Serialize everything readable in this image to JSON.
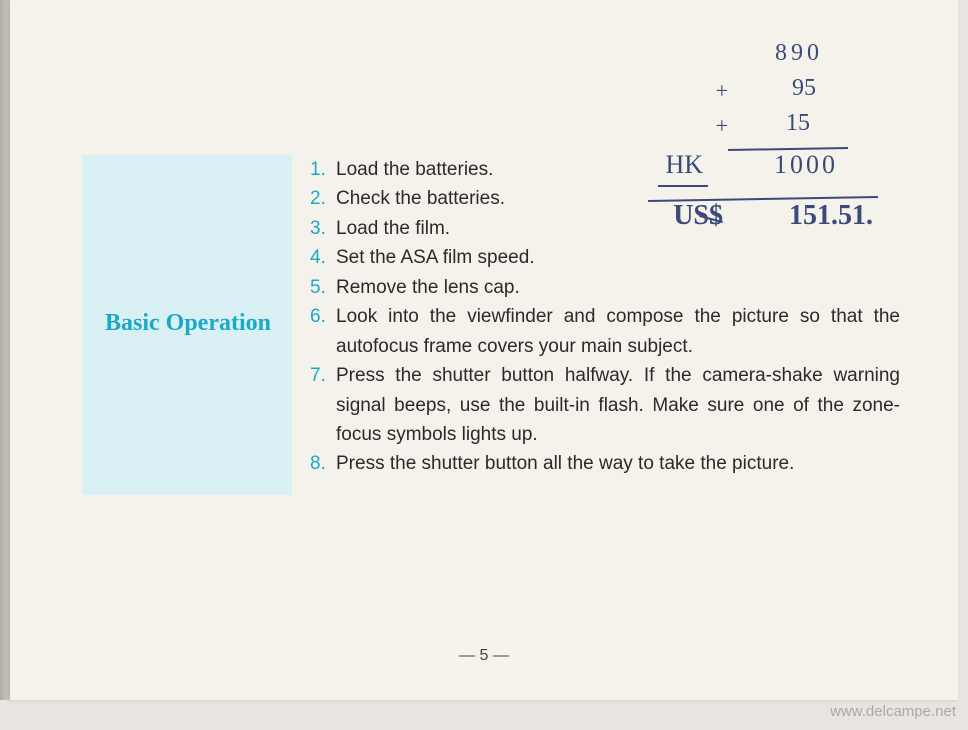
{
  "page": {
    "background_color": "#f5f2eb",
    "outer_background": "#e8e4df",
    "page_number": "— 5 —"
  },
  "sidebar": {
    "title": "Basic Operation",
    "title_color": "#1ba9c9",
    "title_fontsize": 24,
    "block_color": "#d9f0f5"
  },
  "instructions": {
    "number_color": "#1ba9c9",
    "text_color": "#2a2a2a",
    "fontsize": 19,
    "items": [
      "Load the batteries.",
      "Check the batteries.",
      "Load the film.",
      "Set the ASA film speed.",
      "Remove the lens cap.",
      "Look into the viewfinder and compose the picture so that the autofocus frame covers your main subject.",
      "Press the shutter button halfway. If the camera-shake warning signal beeps, use the built-in flash. Make sure one of the zone-focus symbols lights up.",
      "Press the shutter button all the way to take the picture."
    ]
  },
  "handwriting": {
    "color": "#3a4a7a",
    "lines": {
      "v1": "890",
      "v2": "95",
      "v2_op": "+",
      "v3": "15",
      "v3_op": "+",
      "currency1": "HK",
      "sum": "1000",
      "currency2": "US$",
      "result": "151.51."
    }
  },
  "watermark": "www.delcampe.net"
}
